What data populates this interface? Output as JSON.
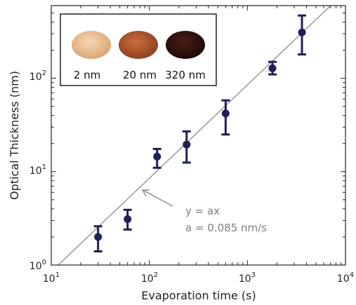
{
  "chart_data": {
    "type": "scatter",
    "xlabel": "Evaporation time (s)",
    "ylabel": "Optical Thickness (nm)",
    "xscale": "log",
    "yscale": "log",
    "xlim": [
      10,
      10000
    ],
    "ylim": [
      1,
      600
    ],
    "x_ticks": [
      {
        "base": "10",
        "exp": "1"
      },
      {
        "base": "10",
        "exp": "2"
      },
      {
        "base": "10",
        "exp": "3"
      },
      {
        "base": "10",
        "exp": "4"
      }
    ],
    "y_ticks": [
      {
        "base": "10",
        "exp": "0"
      },
      {
        "base": "10",
        "exp": "1"
      },
      {
        "base": "10",
        "exp": "2"
      }
    ],
    "points": [
      {
        "x": 30,
        "y": 2.0,
        "lo": 1.4,
        "hi": 2.6
      },
      {
        "x": 60,
        "y": 3.1,
        "lo": 2.4,
        "hi": 3.9
      },
      {
        "x": 120,
        "y": 14.5,
        "lo": 11.0,
        "hi": 17.5
      },
      {
        "x": 240,
        "y": 19.5,
        "lo": 12.5,
        "hi": 27.0
      },
      {
        "x": 600,
        "y": 42,
        "lo": 25,
        "hi": 58
      },
      {
        "x": 1800,
        "y": 128,
        "lo": 110,
        "hi": 150
      },
      {
        "x": 3600,
        "y": 310,
        "lo": 180,
        "hi": 470
      }
    ],
    "fit": {
      "a": 0.085
    },
    "annotation": {
      "line1": "y = ax",
      "line2": "a = 0.085 nm/s"
    },
    "grid": false,
    "colors": {
      "points": "#1c2257",
      "fit": "#8c8c8c",
      "annotation": "#7f7f7f"
    }
  },
  "inset": {
    "samples": [
      {
        "label": "2 nm",
        "color": "#e8b98c"
      },
      {
        "label": "20 nm",
        "color": "#b0582c"
      },
      {
        "label": "320 nm",
        "color": "#2b0f0a"
      }
    ]
  }
}
